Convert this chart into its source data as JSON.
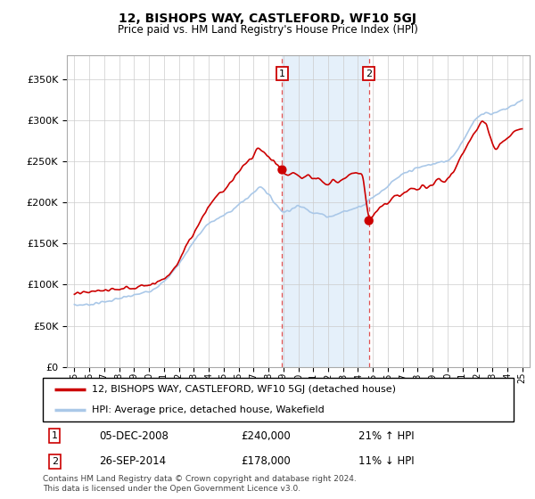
{
  "title": "12, BISHOPS WAY, CASTLEFORD, WF10 5GJ",
  "subtitle": "Price paid vs. HM Land Registry's House Price Index (HPI)",
  "sale1_date": "05-DEC-2008",
  "sale1_price": 240000,
  "sale1_hpi": "21% ↑ HPI",
  "sale2_date": "26-SEP-2014",
  "sale2_price": 178000,
  "sale2_hpi": "11% ↓ HPI",
  "legend_label1": "12, BISHOPS WAY, CASTLEFORD, WF10 5GJ (detached house)",
  "legend_label2": "HPI: Average price, detached house, Wakefield",
  "footnote": "Contains HM Land Registry data © Crown copyright and database right 2024.\nThis data is licensed under the Open Government Licence v3.0.",
  "hpi_color": "#aac8e8",
  "price_color": "#cc0000",
  "shade_color": "#daeaf8",
  "ylim": [
    0,
    380000
  ],
  "yticks": [
    0,
    50000,
    100000,
    150000,
    200000,
    250000,
    300000,
    350000
  ],
  "sale1_x": 2008.92,
  "sale2_x": 2014.73,
  "hpi_waypoints": [
    [
      1995,
      75000
    ],
    [
      1996,
      76000
    ],
    [
      1997,
      79000
    ],
    [
      1998,
      83000
    ],
    [
      1999,
      87000
    ],
    [
      2000,
      92000
    ],
    [
      2001,
      103000
    ],
    [
      2002,
      125000
    ],
    [
      2003,
      153000
    ],
    [
      2004,
      175000
    ],
    [
      2005,
      184000
    ],
    [
      2006,
      197000
    ],
    [
      2007,
      212000
    ],
    [
      2007.5,
      221000
    ],
    [
      2008,
      210000
    ],
    [
      2008.5,
      198000
    ],
    [
      2009,
      188000
    ],
    [
      2009.5,
      192000
    ],
    [
      2010,
      196000
    ],
    [
      2010.5,
      193000
    ],
    [
      2011,
      188000
    ],
    [
      2011.5,
      186000
    ],
    [
      2012,
      183000
    ],
    [
      2012.5,
      185000
    ],
    [
      2013,
      189000
    ],
    [
      2013.5,
      191000
    ],
    [
      2014,
      195000
    ],
    [
      2014.5,
      199000
    ],
    [
      2015,
      207000
    ],
    [
      2015.5,
      213000
    ],
    [
      2016,
      220000
    ],
    [
      2016.5,
      228000
    ],
    [
      2017,
      234000
    ],
    [
      2017.5,
      239000
    ],
    [
      2018,
      242000
    ],
    [
      2018.5,
      245000
    ],
    [
      2019,
      247000
    ],
    [
      2019.5,
      249000
    ],
    [
      2020,
      251000
    ],
    [
      2020.5,
      260000
    ],
    [
      2021,
      275000
    ],
    [
      2021.5,
      290000
    ],
    [
      2022,
      305000
    ],
    [
      2022.5,
      310000
    ],
    [
      2023,
      308000
    ],
    [
      2023.5,
      312000
    ],
    [
      2024,
      315000
    ],
    [
      2024.5,
      320000
    ],
    [
      2025,
      325000
    ]
  ],
  "price_waypoints": [
    [
      1995,
      88000
    ],
    [
      1995.5,
      90000
    ],
    [
      1996,
      91000
    ],
    [
      1996.5,
      93000
    ],
    [
      1997,
      92000
    ],
    [
      1997.5,
      95000
    ],
    [
      1998,
      94000
    ],
    [
      1998.5,
      97000
    ],
    [
      1999,
      96000
    ],
    [
      1999.5,
      99000
    ],
    [
      2000,
      100000
    ],
    [
      2000.5,
      103000
    ],
    [
      2001,
      107000
    ],
    [
      2001.5,
      115000
    ],
    [
      2002,
      128000
    ],
    [
      2002.5,
      148000
    ],
    [
      2003,
      163000
    ],
    [
      2003.5,
      180000
    ],
    [
      2004,
      196000
    ],
    [
      2004.5,
      208000
    ],
    [
      2005,
      214000
    ],
    [
      2005.5,
      225000
    ],
    [
      2006,
      237000
    ],
    [
      2006.5,
      248000
    ],
    [
      2007,
      255000
    ],
    [
      2007.3,
      269000
    ],
    [
      2007.6,
      262000
    ],
    [
      2008,
      256000
    ],
    [
      2008.5,
      248000
    ],
    [
      2008.92,
      240000
    ],
    [
      2009,
      238000
    ],
    [
      2009.3,
      233000
    ],
    [
      2009.6,
      237000
    ],
    [
      2010,
      232000
    ],
    [
      2010.3,
      229000
    ],
    [
      2010.6,
      234000
    ],
    [
      2011,
      228000
    ],
    [
      2011.3,
      232000
    ],
    [
      2011.6,
      226000
    ],
    [
      2012,
      222000
    ],
    [
      2012.3,
      228000
    ],
    [
      2012.6,
      224000
    ],
    [
      2013,
      228000
    ],
    [
      2013.3,
      232000
    ],
    [
      2013.6,
      238000
    ],
    [
      2014,
      236000
    ],
    [
      2014.3,
      237000
    ],
    [
      2014.73,
      178000
    ],
    [
      2015,
      185000
    ],
    [
      2015.3,
      190000
    ],
    [
      2015.6,
      197000
    ],
    [
      2016,
      200000
    ],
    [
      2016.3,
      205000
    ],
    [
      2016.6,
      208000
    ],
    [
      2017,
      210000
    ],
    [
      2017.3,
      214000
    ],
    [
      2017.6,
      218000
    ],
    [
      2018,
      215000
    ],
    [
      2018.3,
      220000
    ],
    [
      2018.6,
      218000
    ],
    [
      2019,
      222000
    ],
    [
      2019.3,
      228000
    ],
    [
      2019.6,
      225000
    ],
    [
      2020,
      228000
    ],
    [
      2020.3,
      235000
    ],
    [
      2020.6,
      245000
    ],
    [
      2021,
      258000
    ],
    [
      2021.3,
      270000
    ],
    [
      2021.6,
      280000
    ],
    [
      2022,
      290000
    ],
    [
      2022.3,
      300000
    ],
    [
      2022.6,
      295000
    ],
    [
      2023,
      270000
    ],
    [
      2023.3,
      265000
    ],
    [
      2023.6,
      272000
    ],
    [
      2024,
      278000
    ],
    [
      2024.3,
      282000
    ],
    [
      2024.6,
      288000
    ],
    [
      2025,
      292000
    ]
  ]
}
